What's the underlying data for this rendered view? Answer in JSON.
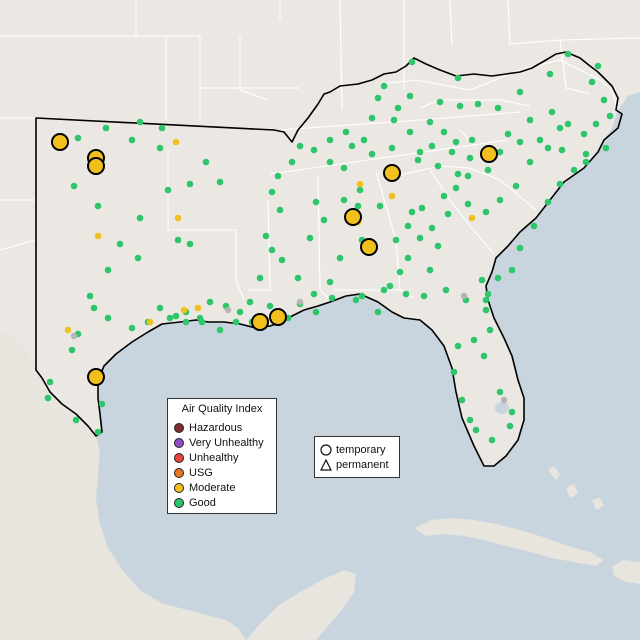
{
  "legend": {
    "title": "Air Quality Index",
    "items": [
      {
        "label": "Hazardous",
        "color": "#7e2d2d"
      },
      {
        "label": "Very Unhealthy",
        "color": "#8f4fc0"
      },
      {
        "label": "Unhealthy",
        "color": "#e8453c"
      },
      {
        "label": "USG",
        "color": "#e87722"
      },
      {
        "label": "Moderate",
        "color": "#f2c01e"
      },
      {
        "label": "Good",
        "color": "#2ec66b"
      }
    ]
  },
  "shape_legend": {
    "items": [
      {
        "label": "temporary",
        "icon": "circle-icon"
      },
      {
        "label": "permanent",
        "icon": "triangle-icon"
      }
    ]
  },
  "colors": {
    "ocean": "#c9d5de",
    "land": "#ebe8e4",
    "state_border": "#ffffff",
    "region_outline": "#000000",
    "good": "#2ec66b",
    "moderate": "#f2c01e",
    "no_data": "#b5b5b5"
  }
}
